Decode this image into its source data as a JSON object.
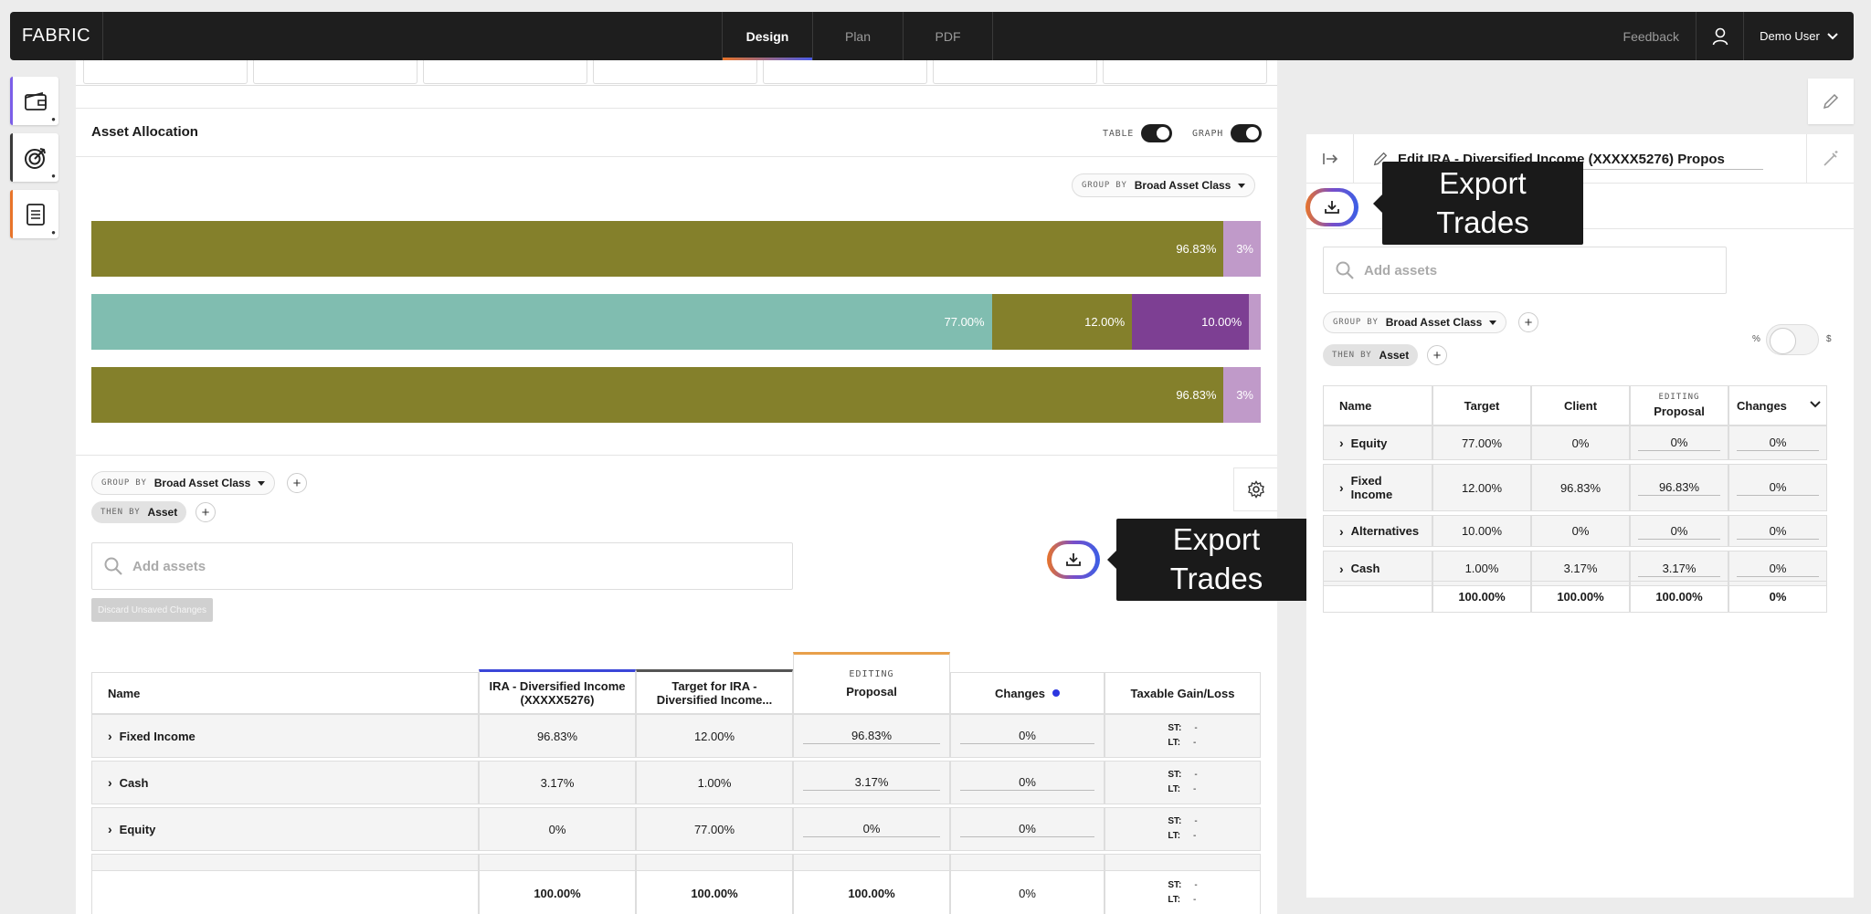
{
  "app": {
    "logo": "FABRIC",
    "feedback": "Feedback",
    "user": "Demo User"
  },
  "nav": {
    "tabs": [
      "Design",
      "Plan",
      "PDF"
    ],
    "active": "Design"
  },
  "colors": {
    "olive": "#84802b",
    "teal": "#80bdb0",
    "purple": "#7d3f93",
    "lilac": "#c09ac9",
    "accent_orange": "#e8742a",
    "accent_blue": "#3b5fe6"
  },
  "allocation": {
    "title": "Asset Allocation",
    "table_label": "TABLE",
    "graph_label": "GRAPH",
    "group_by_label": "GROUP BY",
    "group_by_value": "Broad Asset Class",
    "bars": [
      {
        "segments": [
          {
            "value": 96.83,
            "label": "96.83%",
            "color": "#84802b"
          },
          {
            "value": 3.17,
            "label": "3%",
            "color": "#c09ac9"
          }
        ]
      },
      {
        "segments": [
          {
            "value": 77.0,
            "label": "77.00%",
            "color": "#80bdb0"
          },
          {
            "value": 12.0,
            "label": "12.00%",
            "color": "#84802b"
          },
          {
            "value": 10.0,
            "label": "10.00%",
            "color": "#7d3f93"
          },
          {
            "value": 1.0,
            "label": "",
            "color": "#c09ac9"
          }
        ]
      },
      {
        "segments": [
          {
            "value": 96.83,
            "label": "96.83%",
            "color": "#84802b"
          },
          {
            "value": 3.17,
            "label": "3%",
            "color": "#c09ac9"
          }
        ]
      }
    ]
  },
  "grouping": {
    "group_by_label": "GROUP BY",
    "group_by_value": "Broad Asset Class",
    "then_by_label": "THEN BY",
    "then_by_value": "Asset"
  },
  "search": {
    "placeholder": "Add assets"
  },
  "discard_label": "Discard Unsaved Changes",
  "export_tooltip": {
    "line1": "Export",
    "line2": "Trades"
  },
  "main_table": {
    "headers": {
      "name": "Name",
      "current": "IRA - Diversified Income (XXXXX5276)",
      "target": "Target for IRA - Diversified Income...",
      "editing": "EDITING",
      "proposal": "Proposal",
      "changes": "Changes",
      "gain_loss": "Taxable Gain/Loss"
    },
    "rows": [
      {
        "name": "Fixed Income",
        "current": "96.83%",
        "target": "12.00%",
        "proposal": "96.83%",
        "changes": "0%",
        "st": "-",
        "lt": "-"
      },
      {
        "name": "Cash",
        "current": "3.17%",
        "target": "1.00%",
        "proposal": "3.17%",
        "changes": "0%",
        "st": "-",
        "lt": "-"
      },
      {
        "name": "Equity",
        "current": "0%",
        "target": "77.00%",
        "proposal": "0%",
        "changes": "0%",
        "st": "-",
        "lt": "-"
      }
    ],
    "st_label": "ST:",
    "lt_label": "LT:",
    "totals": {
      "current": "100.00%",
      "target": "100.00%",
      "proposal": "100.00%",
      "changes": "0%",
      "st": "-",
      "lt": "-"
    }
  },
  "right_panel": {
    "title": "Edit IRA - Diversified Income (XXXXX5276) Propos",
    "search_placeholder": "Add assets",
    "group_by_label": "GROUP BY",
    "group_by_value": "Broad Asset Class",
    "then_by_label": "THEN BY",
    "then_by_value": "Asset",
    "toggle_left": "%",
    "toggle_right": "$",
    "headers": {
      "name": "Name",
      "target": "Target",
      "client": "Client",
      "editing": "EDITING",
      "proposal": "Proposal",
      "changes": "Changes"
    },
    "rows": [
      {
        "name": "Equity",
        "target": "77.00%",
        "client": "0%",
        "proposal": "0%",
        "changes": "0%"
      },
      {
        "name": "Fixed Income",
        "target": "12.00%",
        "client": "96.83%",
        "proposal": "96.83%",
        "changes": "0%"
      },
      {
        "name": "Alternatives",
        "target": "10.00%",
        "client": "0%",
        "proposal": "0%",
        "changes": "0%"
      },
      {
        "name": "Cash",
        "target": "1.00%",
        "client": "3.17%",
        "proposal": "3.17%",
        "changes": "0%"
      }
    ],
    "totals": {
      "target": "100.00%",
      "client": "100.00%",
      "proposal": "100.00%",
      "changes": "0%"
    }
  }
}
